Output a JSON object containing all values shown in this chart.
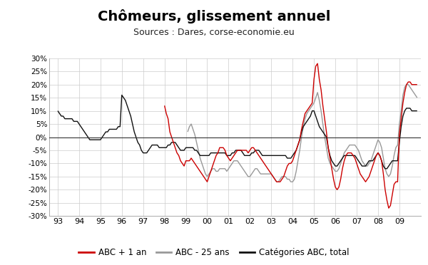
{
  "title": "Chômeurs, glissement annuel",
  "subtitle": "Sources : Dares, corse-economie.eu",
  "title_fontsize": 14,
  "subtitle_fontsize": 9,
  "ylim": [
    -0.3,
    0.3
  ],
  "yticks": [
    -0.3,
    -0.25,
    -0.2,
    -0.15,
    -0.1,
    -0.05,
    0.0,
    0.05,
    0.1,
    0.15,
    0.2,
    0.25,
    0.3
  ],
  "xtick_labels": [
    "93",
    "94",
    "95",
    "96",
    "97",
    "98",
    "99",
    "00",
    "01",
    "02",
    "03",
    "04",
    "05",
    "06",
    "07",
    "08",
    "09"
  ],
  "background_color": "#ffffff",
  "plot_bg_color": "#ffffff",
  "grid_color": "#cccccc",
  "color_abc1an": "#cc0000",
  "color_abc25": "#999999",
  "color_abctotal": "#111111",
  "legend_labels": [
    "ABC + 1 an",
    "ABC - 25 ans",
    "Catégories ABC, total"
  ],
  "line_width": 1.0,
  "t_abc1an": [
    1998.0,
    1998.083,
    1998.167,
    1998.25,
    1998.333,
    1998.417,
    1998.5,
    1998.583,
    1998.667,
    1998.75,
    1998.833,
    1998.917,
    1999.0,
    1999.083,
    1999.167,
    1999.25,
    1999.333,
    1999.417,
    1999.5,
    1999.583,
    1999.667,
    1999.75,
    1999.833,
    1999.917,
    2000.0,
    2000.083,
    2000.167,
    2000.25,
    2000.333,
    2000.417,
    2000.5,
    2000.583,
    2000.667,
    2000.75,
    2000.833,
    2000.917,
    2001.0,
    2001.083,
    2001.167,
    2001.25,
    2001.333,
    2001.417,
    2001.5,
    2001.583,
    2001.667,
    2001.75,
    2001.833,
    2001.917,
    2002.0,
    2002.083,
    2002.167,
    2002.25,
    2002.333,
    2002.417,
    2002.5,
    2002.583,
    2002.667,
    2002.75,
    2002.833,
    2002.917,
    2003.0,
    2003.083,
    2003.167,
    2003.25,
    2003.333,
    2003.417,
    2003.5,
    2003.583,
    2003.667,
    2003.75,
    2003.833,
    2003.917,
    2004.0,
    2004.083,
    2004.167,
    2004.25,
    2004.333,
    2004.417,
    2004.5,
    2004.583,
    2004.667,
    2004.75,
    2004.833,
    2004.917,
    2005.0,
    2005.083,
    2005.167,
    2005.25,
    2005.333,
    2005.417,
    2005.5,
    2005.583,
    2005.667,
    2005.75,
    2005.833,
    2005.917,
    2006.0,
    2006.083,
    2006.167,
    2006.25,
    2006.333,
    2006.417,
    2006.5,
    2006.583,
    2006.667,
    2006.75,
    2006.833,
    2006.917,
    2007.0,
    2007.083,
    2007.167,
    2007.25,
    2007.333,
    2007.417,
    2007.5,
    2007.583,
    2007.667,
    2007.75,
    2007.833,
    2007.917,
    2008.0,
    2008.083,
    2008.167,
    2008.25,
    2008.333,
    2008.417,
    2008.5,
    2008.583,
    2008.667,
    2008.75,
    2008.833,
    2008.917,
    2009.0,
    2009.083,
    2009.167,
    2009.25,
    2009.333,
    2009.417,
    2009.5,
    2009.583,
    2009.667,
    2009.75,
    2009.833
  ],
  "v_abc1an": [
    0.12,
    0.09,
    0.07,
    0.02,
    0.0,
    -0.02,
    -0.04,
    -0.06,
    -0.07,
    -0.09,
    -0.1,
    -0.11,
    -0.09,
    -0.09,
    -0.09,
    -0.08,
    -0.09,
    -0.1,
    -0.11,
    -0.12,
    -0.13,
    -0.14,
    -0.15,
    -0.16,
    -0.17,
    -0.15,
    -0.13,
    -0.11,
    -0.09,
    -0.07,
    -0.06,
    -0.04,
    -0.04,
    -0.04,
    -0.05,
    -0.07,
    -0.08,
    -0.09,
    -0.08,
    -0.07,
    -0.06,
    -0.05,
    -0.05,
    -0.05,
    -0.05,
    -0.05,
    -0.05,
    -0.06,
    -0.05,
    -0.04,
    -0.04,
    -0.05,
    -0.06,
    -0.07,
    -0.08,
    -0.09,
    -0.1,
    -0.11,
    -0.12,
    -0.13,
    -0.14,
    -0.15,
    -0.16,
    -0.17,
    -0.17,
    -0.17,
    -0.16,
    -0.15,
    -0.13,
    -0.11,
    -0.1,
    -0.1,
    -0.09,
    -0.07,
    -0.05,
    -0.03,
    -0.01,
    0.03,
    0.06,
    0.09,
    0.1,
    0.11,
    0.12,
    0.13,
    0.22,
    0.27,
    0.28,
    0.22,
    0.18,
    0.12,
    0.07,
    0.02,
    -0.04,
    -0.08,
    -0.12,
    -0.16,
    -0.19,
    -0.2,
    -0.19,
    -0.16,
    -0.12,
    -0.09,
    -0.07,
    -0.06,
    -0.06,
    -0.06,
    -0.07,
    -0.08,
    -0.1,
    -0.12,
    -0.14,
    -0.15,
    -0.16,
    -0.17,
    -0.16,
    -0.15,
    -0.13,
    -0.11,
    -0.09,
    -0.07,
    -0.06,
    -0.07,
    -0.09,
    -0.14,
    -0.2,
    -0.24,
    -0.27,
    -0.26,
    -0.22,
    -0.18,
    -0.17,
    -0.17,
    0.01,
    0.07,
    0.13,
    0.17,
    0.2,
    0.21,
    0.21,
    0.2,
    0.2,
    0.2,
    0.2
  ],
  "t_abc25": [
    1999.083,
    1999.167,
    1999.25,
    1999.333,
    1999.417,
    1999.5,
    1999.583,
    1999.667,
    1999.75,
    1999.833,
    1999.917,
    2000.0,
    2000.083,
    2000.167,
    2000.25,
    2000.333,
    2000.417,
    2000.5,
    2000.583,
    2000.667,
    2000.75,
    2000.833,
    2000.917,
    2001.0,
    2001.083,
    2001.167,
    2001.25,
    2001.333,
    2001.417,
    2001.5,
    2001.583,
    2001.667,
    2001.75,
    2001.833,
    2001.917,
    2002.0,
    2002.083,
    2002.167,
    2002.25,
    2002.333,
    2002.417,
    2002.5,
    2002.583,
    2002.667,
    2002.75,
    2002.833,
    2002.917,
    2003.0,
    2003.083,
    2003.167,
    2003.25,
    2003.333,
    2003.417,
    2003.5,
    2003.583,
    2003.667,
    2003.75,
    2003.833,
    2003.917,
    2004.0,
    2004.083,
    2004.167,
    2004.25,
    2004.333,
    2004.417,
    2004.5,
    2004.583,
    2004.667,
    2004.75,
    2004.833,
    2004.917,
    2005.0,
    2005.083,
    2005.167,
    2005.25,
    2005.333,
    2005.417,
    2005.5,
    2005.583,
    2005.667,
    2005.75,
    2005.833,
    2005.917,
    2006.0,
    2006.083,
    2006.167,
    2006.25,
    2006.333,
    2006.417,
    2006.5,
    2006.583,
    2006.667,
    2006.75,
    2006.833,
    2006.917,
    2007.0,
    2007.083,
    2007.167,
    2007.25,
    2007.333,
    2007.417,
    2007.5,
    2007.583,
    2007.667,
    2007.75,
    2007.833,
    2007.917,
    2008.0,
    2008.083,
    2008.167,
    2008.25,
    2008.333,
    2008.417,
    2008.5,
    2008.583,
    2008.667,
    2008.75,
    2008.833,
    2008.917,
    2009.0,
    2009.083,
    2009.167,
    2009.25,
    2009.333,
    2009.417,
    2009.5,
    2009.583,
    2009.667,
    2009.75,
    2009.833
  ],
  "v_abc25": [
    0.02,
    0.04,
    0.05,
    0.03,
    0.01,
    -0.02,
    -0.05,
    -0.08,
    -0.1,
    -0.12,
    -0.14,
    -0.15,
    -0.14,
    -0.13,
    -0.12,
    -0.12,
    -0.13,
    -0.13,
    -0.12,
    -0.12,
    -0.12,
    -0.12,
    -0.13,
    -0.12,
    -0.11,
    -0.1,
    -0.09,
    -0.09,
    -0.09,
    -0.1,
    -0.11,
    -0.12,
    -0.13,
    -0.14,
    -0.15,
    -0.15,
    -0.14,
    -0.13,
    -0.12,
    -0.12,
    -0.13,
    -0.14,
    -0.14,
    -0.14,
    -0.14,
    -0.14,
    -0.14,
    -0.14,
    -0.15,
    -0.16,
    -0.17,
    -0.17,
    -0.16,
    -0.15,
    -0.15,
    -0.15,
    -0.16,
    -0.16,
    -0.17,
    -0.17,
    -0.16,
    -0.13,
    -0.09,
    -0.05,
    0.0,
    0.04,
    0.07,
    0.09,
    0.1,
    0.11,
    0.12,
    0.13,
    0.15,
    0.17,
    0.14,
    0.1,
    0.05,
    0.0,
    -0.04,
    -0.08,
    -0.1,
    -0.11,
    -0.12,
    -0.13,
    -0.13,
    -0.12,
    -0.1,
    -0.08,
    -0.06,
    -0.05,
    -0.04,
    -0.03,
    -0.03,
    -0.03,
    -0.03,
    -0.04,
    -0.05,
    -0.07,
    -0.09,
    -0.1,
    -0.11,
    -0.11,
    -0.1,
    -0.09,
    -0.07,
    -0.05,
    -0.03,
    -0.01,
    -0.02,
    -0.04,
    -0.08,
    -0.12,
    -0.14,
    -0.15,
    -0.14,
    -0.11,
    -0.07,
    -0.04,
    -0.03,
    0.05,
    0.1,
    0.16,
    0.19,
    0.2,
    0.2,
    0.19,
    0.18,
    0.17,
    0.16,
    0.15
  ],
  "t_abctotal": [
    1993.0,
    1993.083,
    1993.167,
    1993.25,
    1993.333,
    1993.417,
    1993.5,
    1993.583,
    1993.667,
    1993.75,
    1993.833,
    1993.917,
    1994.0,
    1994.083,
    1994.167,
    1994.25,
    1994.333,
    1994.417,
    1994.5,
    1994.583,
    1994.667,
    1994.75,
    1994.833,
    1994.917,
    1995.0,
    1995.083,
    1995.167,
    1995.25,
    1995.333,
    1995.417,
    1995.5,
    1995.583,
    1995.667,
    1995.75,
    1995.833,
    1995.917,
    1996.0,
    1996.083,
    1996.167,
    1996.25,
    1996.333,
    1996.417,
    1996.5,
    1996.583,
    1996.667,
    1996.75,
    1996.833,
    1996.917,
    1997.0,
    1997.083,
    1997.167,
    1997.25,
    1997.333,
    1997.417,
    1997.5,
    1997.583,
    1997.667,
    1997.75,
    1997.833,
    1997.917,
    1998.0,
    1998.083,
    1998.167,
    1998.25,
    1998.333,
    1998.417,
    1998.5,
    1998.583,
    1998.667,
    1998.75,
    1998.833,
    1998.917,
    1999.0,
    1999.083,
    1999.167,
    1999.25,
    1999.333,
    1999.417,
    1999.5,
    1999.583,
    1999.667,
    1999.75,
    1999.833,
    1999.917,
    2000.0,
    2000.083,
    2000.167,
    2000.25,
    2000.333,
    2000.417,
    2000.5,
    2000.583,
    2000.667,
    2000.75,
    2000.833,
    2000.917,
    2001.0,
    2001.083,
    2001.167,
    2001.25,
    2001.333,
    2001.417,
    2001.5,
    2001.583,
    2001.667,
    2001.75,
    2001.833,
    2001.917,
    2002.0,
    2002.083,
    2002.167,
    2002.25,
    2002.333,
    2002.417,
    2002.5,
    2002.583,
    2002.667,
    2002.75,
    2002.833,
    2002.917,
    2003.0,
    2003.083,
    2003.167,
    2003.25,
    2003.333,
    2003.417,
    2003.5,
    2003.583,
    2003.667,
    2003.75,
    2003.833,
    2003.917,
    2004.0,
    2004.083,
    2004.167,
    2004.25,
    2004.333,
    2004.417,
    2004.5,
    2004.583,
    2004.667,
    2004.75,
    2004.833,
    2004.917,
    2005.0,
    2005.083,
    2005.167,
    2005.25,
    2005.333,
    2005.417,
    2005.5,
    2005.583,
    2005.667,
    2005.75,
    2005.833,
    2005.917,
    2006.0,
    2006.083,
    2006.167,
    2006.25,
    2006.333,
    2006.417,
    2006.5,
    2006.583,
    2006.667,
    2006.75,
    2006.833,
    2006.917,
    2007.0,
    2007.083,
    2007.167,
    2007.25,
    2007.333,
    2007.417,
    2007.5,
    2007.583,
    2007.667,
    2007.75,
    2007.833,
    2007.917,
    2008.0,
    2008.083,
    2008.167,
    2008.25,
    2008.333,
    2008.417,
    2008.5,
    2008.583,
    2008.667,
    2008.75,
    2008.833,
    2008.917,
    2009.0,
    2009.083,
    2009.167,
    2009.25,
    2009.333,
    2009.417,
    2009.5,
    2009.583,
    2009.667,
    2009.75,
    2009.833
  ],
  "v_abctotal": [
    0.1,
    0.09,
    0.08,
    0.08,
    0.07,
    0.07,
    0.07,
    0.07,
    0.07,
    0.06,
    0.06,
    0.06,
    0.05,
    0.04,
    0.03,
    0.02,
    0.01,
    0.0,
    -0.01,
    -0.01,
    -0.01,
    -0.01,
    -0.01,
    -0.01,
    -0.01,
    0.0,
    0.01,
    0.02,
    0.02,
    0.03,
    0.03,
    0.03,
    0.03,
    0.03,
    0.04,
    0.04,
    0.16,
    0.15,
    0.14,
    0.12,
    0.1,
    0.08,
    0.05,
    0.02,
    0.0,
    -0.02,
    -0.03,
    -0.05,
    -0.06,
    -0.06,
    -0.06,
    -0.05,
    -0.04,
    -0.03,
    -0.03,
    -0.03,
    -0.03,
    -0.04,
    -0.04,
    -0.04,
    -0.04,
    -0.04,
    -0.03,
    -0.03,
    -0.02,
    -0.02,
    -0.02,
    -0.03,
    -0.04,
    -0.05,
    -0.05,
    -0.05,
    -0.04,
    -0.04,
    -0.04,
    -0.04,
    -0.04,
    -0.05,
    -0.05,
    -0.06,
    -0.07,
    -0.07,
    -0.07,
    -0.07,
    -0.07,
    -0.07,
    -0.06,
    -0.06,
    -0.06,
    -0.06,
    -0.06,
    -0.06,
    -0.06,
    -0.06,
    -0.06,
    -0.07,
    -0.07,
    -0.07,
    -0.06,
    -0.06,
    -0.05,
    -0.05,
    -0.05,
    -0.05,
    -0.06,
    -0.07,
    -0.07,
    -0.07,
    -0.07,
    -0.06,
    -0.06,
    -0.05,
    -0.05,
    -0.05,
    -0.06,
    -0.07,
    -0.07,
    -0.07,
    -0.07,
    -0.07,
    -0.07,
    -0.07,
    -0.07,
    -0.07,
    -0.07,
    -0.07,
    -0.07,
    -0.07,
    -0.07,
    -0.08,
    -0.08,
    -0.08,
    -0.07,
    -0.06,
    -0.05,
    -0.03,
    -0.01,
    0.02,
    0.04,
    0.05,
    0.06,
    0.07,
    0.08,
    0.1,
    0.1,
    0.08,
    0.06,
    0.04,
    0.03,
    0.02,
    0.01,
    0.0,
    -0.04,
    -0.07,
    -0.09,
    -0.1,
    -0.11,
    -0.11,
    -0.1,
    -0.09,
    -0.08,
    -0.07,
    -0.07,
    -0.07,
    -0.07,
    -0.07,
    -0.07,
    -0.07,
    -0.08,
    -0.09,
    -0.1,
    -0.11,
    -0.11,
    -0.11,
    -0.1,
    -0.09,
    -0.09,
    -0.09,
    -0.08,
    -0.07,
    -0.06,
    -0.07,
    -0.09,
    -0.11,
    -0.12,
    -0.12,
    -0.11,
    -0.1,
    -0.09,
    -0.09,
    -0.09,
    -0.09,
    -0.02,
    0.04,
    0.08,
    0.1,
    0.11,
    0.11,
    0.11,
    0.1,
    0.1,
    0.1,
    0.1
  ]
}
